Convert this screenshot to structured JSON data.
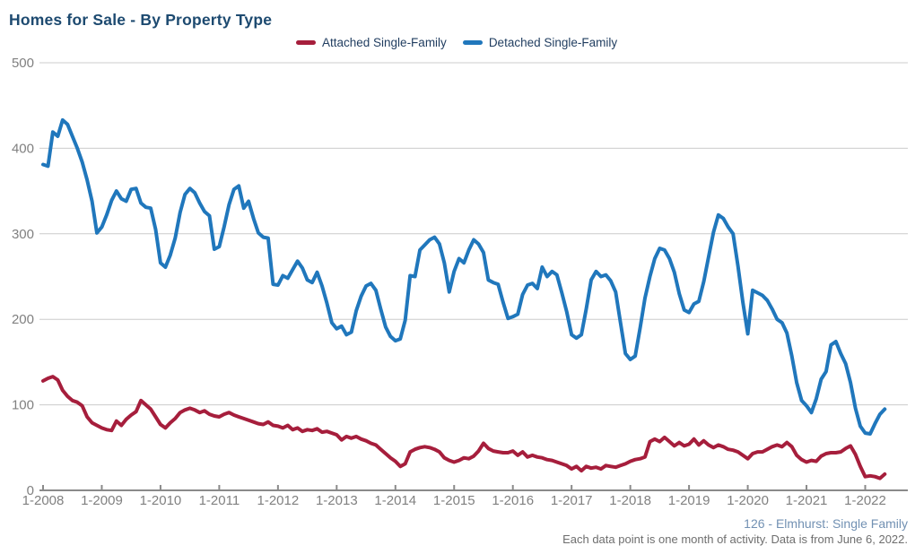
{
  "title": "Homes for Sale - By Property Type",
  "footer": {
    "source": "126 - Elmhurst: Single Family",
    "note": "Each data point is one month of activity. Data is from June 6, 2022."
  },
  "colors": {
    "title_text": "#1d4a70",
    "legend_text": "#1f3c5f",
    "axis_text": "#808080",
    "gridline": "#cccccc",
    "axis_line": "#8a8a8a",
    "attached_series": "#a61e3c",
    "detached_series": "#2077bc",
    "footer_source_text": "#7291b3",
    "footer_note_text": "#6e6e6e"
  },
  "chart_data": {
    "type": "line",
    "title": "Homes for Sale - By Property Type",
    "xlabel": "",
    "ylabel": "",
    "ylim": [
      0,
      500
    ],
    "y_ticks": [
      0,
      100,
      200,
      300,
      400,
      500
    ],
    "x_tick_labels": [
      "1-2008",
      "1-2009",
      "1-2010",
      "1-2011",
      "1-2012",
      "1-2013",
      "1-2014",
      "1-2015",
      "1-2016",
      "1-2017",
      "1-2018",
      "1-2019",
      "1-2020",
      "1-2021",
      "1-2022"
    ],
    "x_frequency": "monthly",
    "x_range": "Jan 2008 to May 2022",
    "grid": "horizontal",
    "legend_position": "top",
    "series": [
      {
        "name": "Attached Single-Family",
        "color": "#a61e3c",
        "values": [
          128,
          131,
          133,
          129,
          117,
          110,
          105,
          103,
          99,
          86,
          79,
          76,
          73,
          71,
          70,
          81,
          76,
          83,
          88,
          92,
          105,
          100,
          95,
          86,
          77,
          73,
          79,
          84,
          91,
          94,
          96,
          94,
          91,
          93,
          89,
          87,
          86,
          89,
          91,
          88,
          86,
          84,
          82,
          80,
          78,
          77,
          80,
          76,
          75,
          73,
          76,
          71,
          73,
          69,
          71,
          70,
          72,
          68,
          69,
          67,
          65,
          59,
          63,
          61,
          63,
          60,
          58,
          55,
          53,
          48,
          43,
          38,
          34,
          28,
          31,
          45,
          48,
          50,
          51,
          50,
          48,
          45,
          38,
          35,
          33,
          35,
          38,
          37,
          40,
          46,
          55,
          49,
          46,
          45,
          44,
          44,
          46,
          41,
          45,
          39,
          41,
          39,
          38,
          36,
          35,
          33,
          31,
          29,
          25,
          28,
          23,
          28,
          26,
          27,
          25,
          29,
          28,
          27,
          29,
          31,
          34,
          36,
          37,
          39,
          57,
          60,
          57,
          62,
          57,
          52,
          56,
          52,
          54,
          60,
          53,
          58,
          53,
          50,
          53,
          51,
          48,
          47,
          45,
          41,
          37,
          43,
          45,
          45,
          48,
          51,
          53,
          51,
          56,
          51,
          41,
          36,
          33,
          35,
          34,
          40,
          43,
          44,
          44,
          45,
          49,
          52,
          42,
          28,
          16,
          17,
          16,
          14,
          19
        ]
      },
      {
        "name": "Detached Single-Family",
        "color": "#2077bc",
        "values": [
          381,
          379,
          419,
          414,
          433,
          428,
          414,
          400,
          384,
          363,
          338,
          301,
          308,
          322,
          339,
          350,
          341,
          338,
          352,
          353,
          336,
          331,
          330,
          305,
          266,
          261,
          275,
          295,
          325,
          346,
          353,
          348,
          336,
          326,
          321,
          282,
          285,
          308,
          334,
          352,
          356,
          330,
          338,
          318,
          301,
          296,
          295,
          241,
          240,
          251,
          248,
          258,
          268,
          260,
          246,
          243,
          255,
          239,
          219,
          196,
          189,
          192,
          182,
          185,
          210,
          227,
          239,
          242,
          234,
          212,
          191,
          180,
          175,
          177,
          199,
          251,
          250,
          281,
          287,
          293,
          296,
          288,
          266,
          232,
          256,
          271,
          266,
          281,
          293,
          288,
          278,
          246,
          243,
          241,
          220,
          201,
          203,
          206,
          229,
          240,
          242,
          236,
          261,
          250,
          256,
          252,
          231,
          209,
          182,
          178,
          182,
          212,
          246,
          256,
          250,
          252,
          245,
          232,
          196,
          160,
          153,
          157,
          190,
          225,
          250,
          271,
          283,
          281,
          271,
          255,
          230,
          211,
          208,
          218,
          221,
          244,
          273,
          302,
          322,
          318,
          308,
          300,
          262,
          220,
          183,
          234,
          231,
          228,
          222,
          212,
          200,
          196,
          184,
          157,
          126,
          105,
          99,
          91,
          107,
          130,
          139,
          170,
          174,
          160,
          148,
          126,
          96,
          75,
          67,
          66,
          78,
          89,
          95
        ]
      }
    ]
  }
}
